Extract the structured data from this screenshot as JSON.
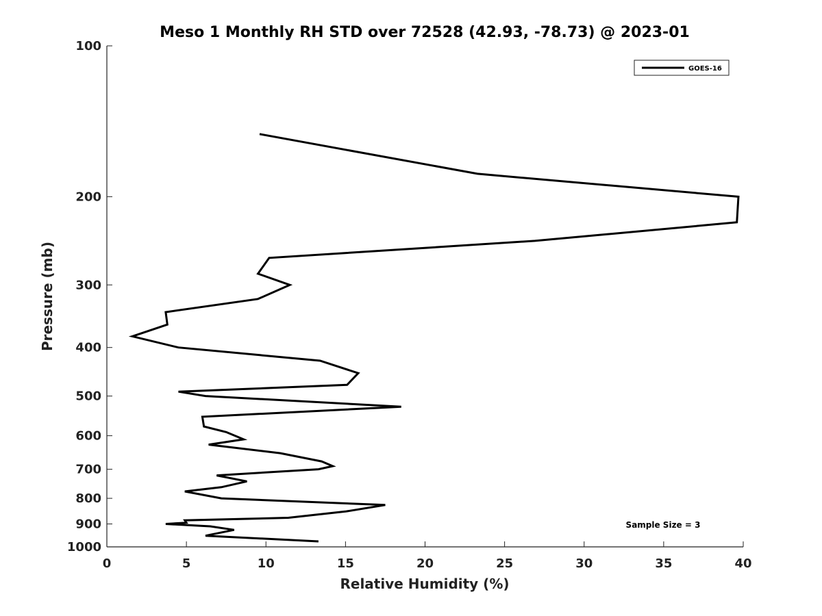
{
  "chart_data": {
    "type": "line",
    "title": "Meso 1 Monthly RH STD over 72528 (42.93, -78.73) @ 2023-01",
    "xlabel": "Relative Humidity (%)",
    "ylabel": "Pressure (mb)",
    "xlim": [
      0,
      40
    ],
    "ylim": [
      1000,
      100
    ],
    "y_scale": "log",
    "y_inverted": true,
    "x_ticks": [
      "0",
      "5",
      "10",
      "15",
      "20",
      "25",
      "30",
      "35",
      "40"
    ],
    "y_ticks": [
      "100",
      "200",
      "300",
      "400",
      "500",
      "600",
      "700",
      "800",
      "900",
      "1000"
    ],
    "grid": false,
    "legend_position": "top-right",
    "series": [
      {
        "name": "GOES-16",
        "color": "#000000",
        "x": [
          9.6,
          23.3,
          39.7,
          39.6,
          26.9,
          10.2,
          9.5,
          11.5,
          9.5,
          3.7,
          3.8,
          1.6,
          4.5,
          13.4,
          15.8,
          15.1,
          4.5,
          6.2,
          18.5,
          6.0,
          6.1,
          7.5,
          8.6,
          6.4,
          10.9,
          13.5,
          14.2,
          13.3,
          6.9,
          8.8,
          7.2,
          4.9,
          7.2,
          17.5,
          15.0,
          11.4,
          4.9,
          5.0,
          3.7,
          6.5,
          8.0,
          6.2,
          13.3
        ],
        "y": [
          150,
          180,
          200,
          225,
          245,
          265,
          285,
          300,
          320,
          340,
          360,
          380,
          400,
          425,
          450,
          475,
          490,
          500,
          525,
          550,
          575,
          590,
          610,
          625,
          650,
          675,
          690,
          700,
          720,
          740,
          760,
          775,
          800,
          825,
          850,
          875,
          885,
          895,
          900,
          910,
          925,
          950,
          975
        ]
      }
    ],
    "annotations": [
      "Sample Size = 3"
    ]
  }
}
